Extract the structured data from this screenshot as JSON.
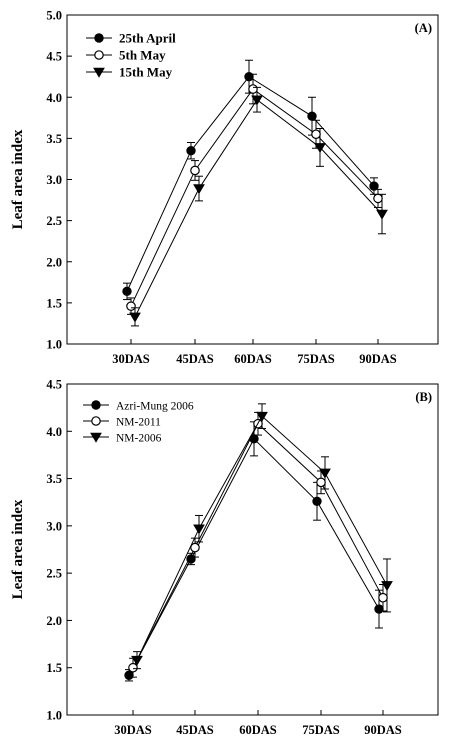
{
  "chart_data": [
    {
      "type": "line",
      "panel_label": "(A)",
      "ylabel": "Leaf area index",
      "xlabel": "",
      "categories": [
        "30DAS",
        "45DAS",
        "60DAS",
        "75DAS",
        "90DAS"
      ],
      "ylim": [
        1.0,
        5.0
      ],
      "yticks": [
        "1.0",
        "1.5",
        "2.0",
        "2.5",
        "3.0",
        "3.5",
        "4.0",
        "4.5",
        "5.0"
      ],
      "legend_position": "top-left",
      "series": [
        {
          "name": "25th April",
          "marker": "filled-circle",
          "values": [
            1.64,
            3.35,
            4.25,
            3.77,
            2.92
          ],
          "errors": [
            0.1,
            0.1,
            0.2,
            0.23,
            0.1
          ]
        },
        {
          "name": "5th May",
          "marker": "open-circle",
          "values": [
            1.46,
            3.11,
            4.1,
            3.55,
            2.77
          ],
          "errors": [
            0.1,
            0.12,
            0.18,
            0.17,
            0.11
          ]
        },
        {
          "name": "15th May",
          "marker": "filled-triangle-down",
          "values": [
            1.33,
            2.89,
            3.97,
            3.39,
            2.58
          ],
          "errors": [
            0.11,
            0.15,
            0.15,
            0.23,
            0.24
          ]
        }
      ]
    },
    {
      "type": "line",
      "panel_label": "(B)",
      "ylabel": "Leaf  area index",
      "xlabel": "",
      "categories": [
        "30DAS",
        "45DAS",
        "60DAS",
        "75DAS",
        "90DAS"
      ],
      "ylim": [
        1.0,
        4.5
      ],
      "yticks": [
        "1.0",
        "1.5",
        "2.0",
        "2.5",
        "3.0",
        "3.5",
        "4.0",
        "4.5"
      ],
      "legend_position": "top-left",
      "series": [
        {
          "name": "Azri-Mung 2006",
          "marker": "filled-circle",
          "values": [
            1.42,
            2.65,
            3.92,
            3.26,
            2.12
          ],
          "errors": [
            0.06,
            0.06,
            0.18,
            0.2,
            0.2
          ]
        },
        {
          "name": "NM-2011",
          "marker": "open-circle",
          "values": [
            1.5,
            2.77,
            4.08,
            3.46,
            2.24
          ],
          "errors": [
            0.1,
            0.1,
            0.12,
            0.12,
            0.14
          ]
        },
        {
          "name": "NM-2006",
          "marker": "filled-triangle-down",
          "values": [
            1.58,
            2.97,
            4.16,
            3.56,
            2.37
          ],
          "errors": [
            0.09,
            0.14,
            0.13,
            0.17,
            0.28
          ]
        }
      ]
    }
  ]
}
